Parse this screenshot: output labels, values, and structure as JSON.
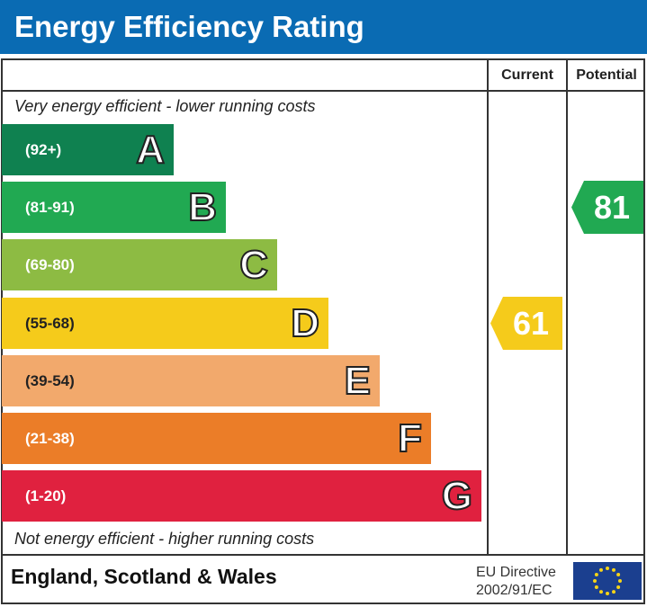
{
  "title": "Energy Efficiency Rating",
  "columns": {
    "current": "Current",
    "potential": "Potential"
  },
  "top_note": "Very energy efficient - lower running costs",
  "bottom_note": "Not energy efficient - higher running costs",
  "footer": {
    "region": "England, Scotland & Wales",
    "directive_line1": "EU Directive",
    "directive_line2": "2002/91/EC"
  },
  "chart_data": {
    "type": "bar",
    "categories": [
      "A",
      "B",
      "C",
      "D",
      "E",
      "F",
      "G"
    ],
    "ranges": [
      "(92+)",
      "(81-91)",
      "(69-80)",
      "(55-68)",
      "(39-54)",
      "(21-38)",
      "(1-20)"
    ],
    "colors": [
      "#0f8150",
      "#21a952",
      "#8dbb43",
      "#f5cb1b",
      "#f2a96c",
      "#eb7d28",
      "#e0213f"
    ],
    "current": {
      "value": "61",
      "band": "D",
      "color": "#f5cb1b"
    },
    "potential": {
      "value": "81",
      "band": "B",
      "color": "#21a952"
    }
  }
}
